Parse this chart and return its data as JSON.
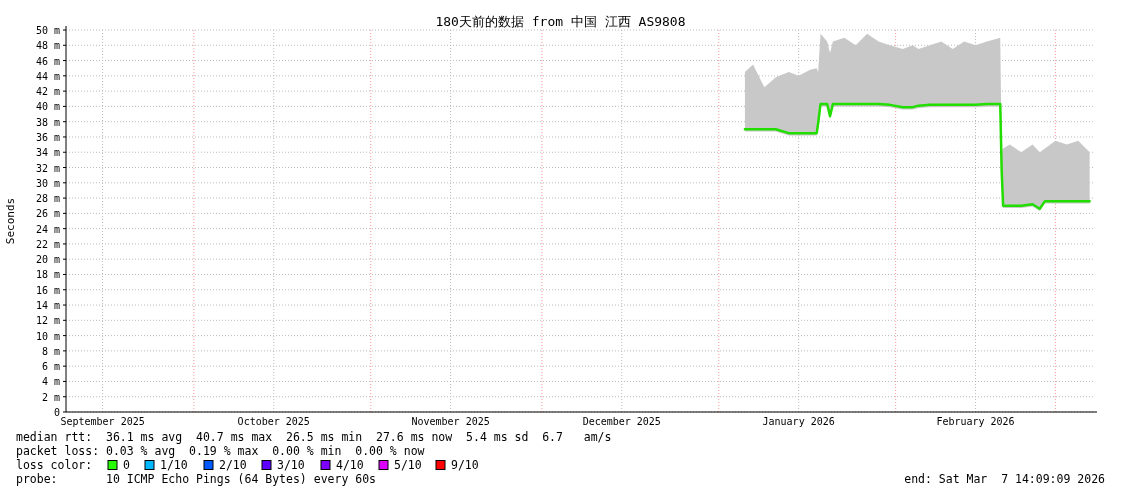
{
  "chart_data": {
    "type": "line",
    "title": "180天前的数据 from 中国 江西 AS9808",
    "ylabel": "Seconds",
    "xlim": [
      "2025-09-08T14:09",
      "2026-03-07T14:09"
    ],
    "xticks": [
      {
        "value": "2025-09-15",
        "label": "September 2025"
      },
      {
        "value": "2025-10-15",
        "label": "October 2025"
      },
      {
        "value": "2025-11-15",
        "label": "November 2025"
      },
      {
        "value": "2025-12-15",
        "label": "December 2025"
      },
      {
        "value": "2026-01-15",
        "label": "January 2026"
      },
      {
        "value": "2026-02-15",
        "label": "February 2026"
      }
    ],
    "ylim": [
      0,
      50
    ],
    "yticks": [
      0,
      {
        "value": 2,
        "label": "2 m"
      },
      {
        "value": 4,
        "label": "4 m"
      },
      {
        "value": 6,
        "label": "6 m"
      },
      {
        "value": 8,
        "label": "8 m"
      },
      {
        "value": 10,
        "label": "10 m"
      },
      {
        "value": 12,
        "label": "12 m"
      },
      {
        "value": 14,
        "label": "14 m"
      },
      {
        "value": 16,
        "label": "16 m"
      },
      {
        "value": 18,
        "label": "18 m"
      },
      {
        "value": 20,
        "label": "20 m"
      },
      {
        "value": 22,
        "label": "22 m"
      },
      {
        "value": 24,
        "label": "24 m"
      },
      {
        "value": 26,
        "label": "26 m"
      },
      {
        "value": 28,
        "label": "28 m"
      },
      {
        "value": 30,
        "label": "30 m"
      },
      {
        "value": 32,
        "label": "32 m"
      },
      {
        "value": 34,
        "label": "34 m"
      },
      {
        "value": 36,
        "label": "36 m"
      },
      {
        "value": 38,
        "label": "38 m"
      },
      {
        "value": 40,
        "label": "40 m"
      },
      {
        "value": 42,
        "label": "42 m"
      },
      {
        "value": 44,
        "label": "44 m"
      },
      {
        "value": 46,
        "label": "46 m"
      },
      {
        "value": 48,
        "label": "48 m"
      },
      {
        "value": 50,
        "label": "50 m"
      }
    ],
    "grid": true,
    "marker": "none",
    "line_style": "solid",
    "ref_lines": [
      {
        "axis": "x",
        "value": "2025-10-01",
        "color": "#ff9999",
        "line_style": "dotted"
      },
      {
        "axis": "x",
        "value": "2025-11-01",
        "color": "#ff9999",
        "line_style": "dotted"
      },
      {
        "axis": "x",
        "value": "2025-12-01",
        "color": "#ff9999",
        "line_style": "dotted"
      },
      {
        "axis": "x",
        "value": "2026-01-01",
        "color": "#ff9999",
        "line_style": "dotted"
      },
      {
        "axis": "x",
        "value": "2026-02-01",
        "color": "#ff9999",
        "line_style": "dotted"
      },
      {
        "axis": "x",
        "value": "2026-03-01",
        "color": "#ff9999",
        "line_style": "dotted"
      }
    ],
    "series": [
      {
        "color": "#22dd00",
        "x": [
          "2026-01-05T14:00",
          "2026-01-07T00:00",
          "2026-01-09T00:00",
          "2026-01-11T00:00",
          "2026-01-13T06:00",
          "2026-01-15T00:00",
          "2026-01-17T00:00",
          "2026-01-18T04:00",
          "2026-01-18T10:00",
          "2026-01-18T20:00",
          "2026-01-20T00:00",
          "2026-01-20T12:00",
          "2026-01-21T00:00",
          "2026-01-23T00:00",
          "2026-01-25T00:00",
          "2026-01-27T00:00",
          "2026-01-29T00:00",
          "2026-01-31T00:00",
          "2026-02-02T06:00",
          "2026-02-04T00:00",
          "2026-02-05T00:00",
          "2026-02-07T00:00",
          "2026-02-09T00:00",
          "2026-02-11T00:00",
          "2026-02-13T00:00",
          "2026-02-15T00:00",
          "2026-02-17T00:00",
          "2026-02-19T08:00",
          "2026-02-19T14:00",
          "2026-02-19T20:00",
          "2026-02-21T00:00",
          "2026-02-23T00:00",
          "2026-02-25T00:00",
          "2026-02-26T06:00",
          "2026-02-27T04:00",
          "2026-03-01T00:00",
          "2026-03-03T00:00",
          "2026-03-05T00:00",
          "2026-03-07T00:00"
        ],
        "values": [
          37.0,
          37.0,
          37.0,
          37.0,
          36.5,
          36.5,
          36.5,
          36.5,
          37.8,
          40.3,
          40.3,
          38.7,
          40.3,
          40.3,
          40.3,
          40.3,
          40.3,
          40.2,
          39.9,
          39.9,
          40.1,
          40.2,
          40.2,
          40.2,
          40.2,
          40.2,
          40.3,
          40.3,
          31.5,
          27.0,
          27.0,
          27.0,
          27.2,
          26.6,
          27.6,
          27.6,
          27.6,
          27.6,
          27.6
        ],
        "lower": [
          36.7,
          36.7,
          36.7,
          36.7,
          36.2,
          36.2,
          36.2,
          36.2,
          37.5,
          40.0,
          40.0,
          38.4,
          40.0,
          40.0,
          40.0,
          40.0,
          40.0,
          39.9,
          39.6,
          39.6,
          39.8,
          39.9,
          39.9,
          39.9,
          39.9,
          39.9,
          40.0,
          40.0,
          31.2,
          26.7,
          26.7,
          26.7,
          26.9,
          26.3,
          27.3,
          27.3,
          27.3,
          27.3,
          27.3
        ],
        "upper": [
          44.5,
          45.5,
          42.5,
          43.8,
          44.5,
          44.0,
          44.8,
          45.0,
          44.5,
          49.5,
          48.5,
          47.0,
          48.5,
          49.0,
          48.0,
          49.5,
          48.5,
          48.0,
          47.5,
          48.0,
          47.5,
          48.0,
          48.5,
          47.5,
          48.5,
          48.0,
          48.5,
          49.0,
          34.0,
          34.5,
          35.0,
          34.0,
          35.0,
          34.0,
          34.5,
          35.5,
          35.0,
          35.5,
          34.0
        ]
      }
    ],
    "annotations": [
      "median rtt:  36.1 ms avg  40.7 ms max  26.5 ms min  27.6 ms now  5.4 ms sd  6.7   am/s",
      "packet loss: 0.03 % avg  0.19 % max  0.00 % min  0.00 % now",
      "loss color:",
      "0",
      "1/10",
      "2/10",
      "3/10",
      "4/10",
      "5/10",
      "9/10",
      "probe:       10 ICMP Echo Pings (64 Bytes) every 60s",
      "end: Sat Mar  7 14:09:09 2026"
    ]
  }
}
